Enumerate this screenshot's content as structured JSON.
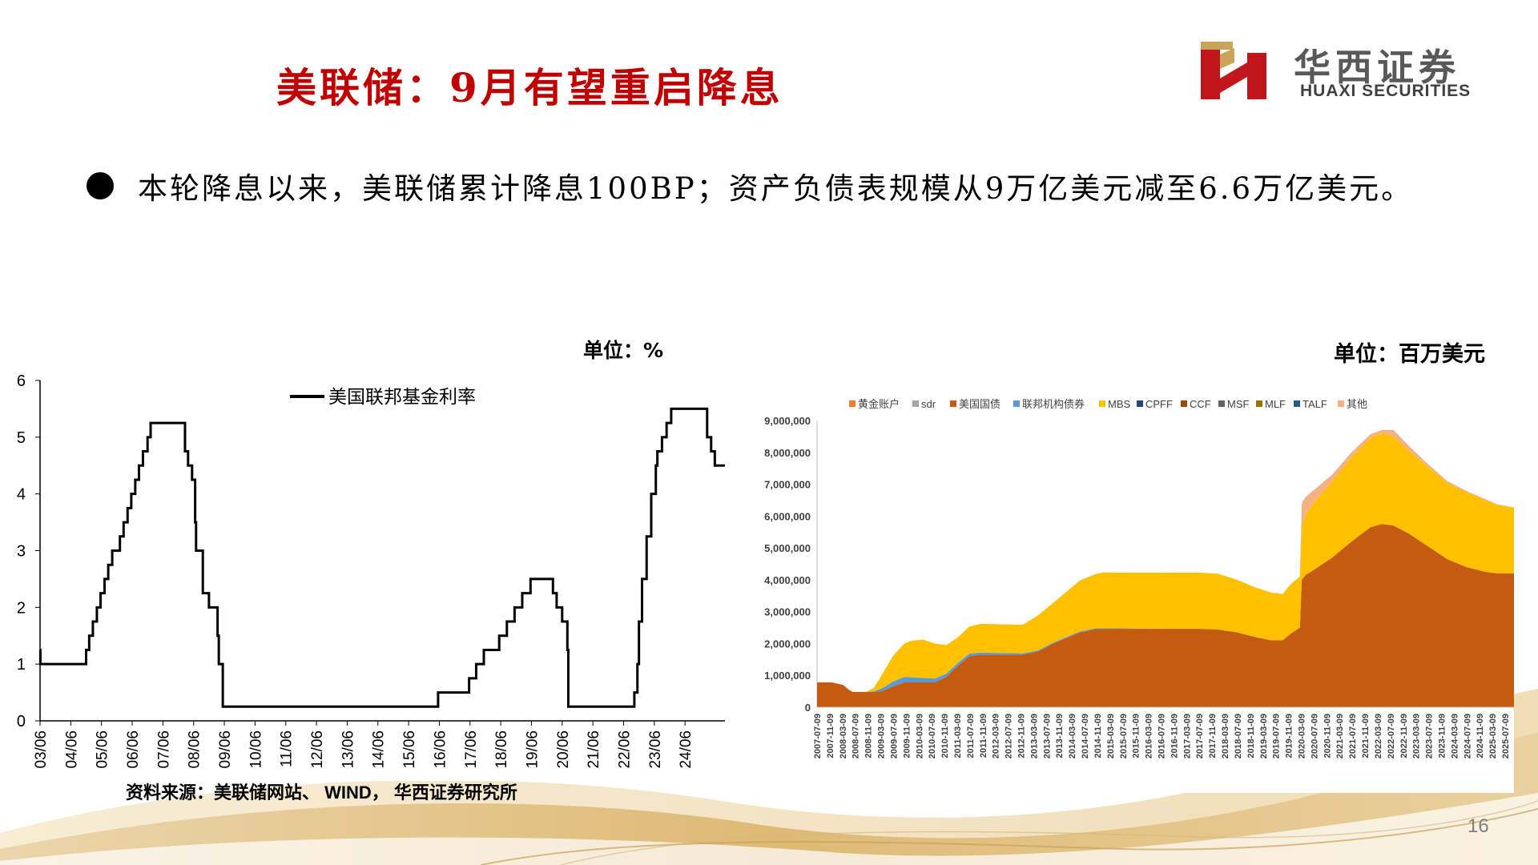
{
  "header": {
    "title": "美联储：9月有望重启降息",
    "logo_cn": "华西证券",
    "logo_en": "HUAXI SECURITIES"
  },
  "bullet": {
    "text": "本轮降息以来，美联储累计降息100BP；资产负债表规模从9万亿美元减至6.6万亿美元。"
  },
  "unit_left": "单位：%",
  "unit_right": "单位：百万美元",
  "source": "资料来源：美联储网站、 WIND， 华西证券研究所",
  "page_number": "16",
  "colors": {
    "title_red": "#c00000",
    "logo_red": "#c0171c",
    "logo_gold": "#c8a55a",
    "fed_rate_line": "#000000",
    "ust": "#c55a11",
    "mbs": "#ffc000",
    "other": "#f4b183",
    "agency": "#5b9bd5",
    "sdr": "#a5a5a5"
  },
  "chart_data": [
    {
      "type": "line",
      "title": "",
      "legend": [
        "美国联邦基金利率"
      ],
      "legend_position": "top-center",
      "xlabel": "",
      "ylabel": "",
      "ylim": [
        0,
        6
      ],
      "yticks": [
        "0",
        "1",
        "2",
        "3",
        "4",
        "5",
        "6"
      ],
      "xticks": [
        "03/06",
        "04/06",
        "05/06",
        "06/06",
        "07/06",
        "08/06",
        "09/06",
        "10/06",
        "11/06",
        "12/06",
        "13/06",
        "14/06",
        "15/06",
        "16/06",
        "17/06",
        "18/06",
        "19/06",
        "20/06",
        "21/06",
        "22/06",
        "23/06",
        "24/06"
      ],
      "xlim": [
        2003.0,
        2025.3
      ],
      "grid": false,
      "series": [
        {
          "name": "美国联邦基金利率",
          "step": true,
          "points": [
            [
              2003.0,
              1.25
            ],
            [
              2003.01,
              1.0
            ],
            [
              2004.5,
              1.0
            ],
            [
              2004.5,
              1.25
            ],
            [
              2004.6,
              1.5
            ],
            [
              2004.72,
              1.75
            ],
            [
              2004.85,
              2.0
            ],
            [
              2004.97,
              2.25
            ],
            [
              2005.1,
              2.5
            ],
            [
              2005.22,
              2.75
            ],
            [
              2005.35,
              3.0
            ],
            [
              2005.6,
              3.25
            ],
            [
              2005.72,
              3.5
            ],
            [
              2005.85,
              3.75
            ],
            [
              2005.97,
              4.0
            ],
            [
              2006.1,
              4.25
            ],
            [
              2006.22,
              4.5
            ],
            [
              2006.35,
              4.75
            ],
            [
              2006.5,
              5.0
            ],
            [
              2006.6,
              5.25
            ],
            [
              2007.7,
              5.25
            ],
            [
              2007.72,
              4.75
            ],
            [
              2007.82,
              4.5
            ],
            [
              2007.95,
              4.25
            ],
            [
              2008.05,
              3.5
            ],
            [
              2008.08,
              3.0
            ],
            [
              2008.3,
              2.25
            ],
            [
              2008.5,
              2.0
            ],
            [
              2008.78,
              1.5
            ],
            [
              2008.82,
              1.0
            ],
            [
              2008.95,
              0.25
            ],
            [
              2015.95,
              0.25
            ],
            [
              2015.96,
              0.5
            ],
            [
              2016.96,
              0.5
            ],
            [
              2016.97,
              0.75
            ],
            [
              2017.2,
              1.0
            ],
            [
              2017.45,
              1.25
            ],
            [
              2017.95,
              1.5
            ],
            [
              2018.2,
              1.75
            ],
            [
              2018.45,
              2.0
            ],
            [
              2018.7,
              2.25
            ],
            [
              2018.97,
              2.5
            ],
            [
              2019.58,
              2.5
            ],
            [
              2019.7,
              2.25
            ],
            [
              2019.82,
              2.0
            ],
            [
              2020.0,
              1.75
            ],
            [
              2020.17,
              1.25
            ],
            [
              2020.2,
              0.25
            ],
            [
              2022.2,
              0.25
            ],
            [
              2022.35,
              0.5
            ],
            [
              2022.45,
              1.0
            ],
            [
              2022.5,
              1.75
            ],
            [
              2022.6,
              2.5
            ],
            [
              2022.75,
              3.25
            ],
            [
              2022.9,
              4.0
            ],
            [
              2023.05,
              4.5
            ],
            [
              2023.1,
              4.75
            ],
            [
              2023.25,
              5.0
            ],
            [
              2023.4,
              5.25
            ],
            [
              2023.55,
              5.5
            ],
            [
              2024.7,
              5.5
            ],
            [
              2024.72,
              5.0
            ],
            [
              2024.85,
              4.75
            ],
            [
              2024.97,
              4.5
            ],
            [
              2025.3,
              4.5
            ]
          ]
        }
      ]
    },
    {
      "type": "area",
      "title": "",
      "stacked": true,
      "legend": [
        "黄金账户",
        "sdr",
        "美国国债",
        "联邦机构债券",
        "MBS",
        "CPFF",
        "CCF",
        "MSF",
        "MLF",
        "TALF",
        "其他"
      ],
      "legend_colors": [
        "#ed7d31",
        "#a5a5a5",
        "#c55a11",
        "#5b9bd5",
        "#ffc000",
        "#264478",
        "#9e480e",
        "#636363",
        "#997300",
        "#255e91",
        "#f4b183"
      ],
      "legend_position": "top",
      "ylim": [
        0,
        9000000
      ],
      "yticks": [
        "0",
        "1,000,000",
        "2,000,000",
        "3,000,000",
        "4,000,000",
        "5,000,000",
        "6,000,000",
        "7,000,000",
        "8,000,000",
        "9,000,000"
      ],
      "xticks": [
        "2007-07-09",
        "2007-11-09",
        "2008-03-09",
        "2008-07-09",
        "2008-11-09",
        "2009-03-09",
        "2009-07-09",
        "2009-11-09",
        "2010-03-09",
        "2010-07-09",
        "2010-11-09",
        "2011-03-09",
        "2011-07-09",
        "2011-11-09",
        "2012-03-09",
        "2012-07-09",
        "2012-11-09",
        "2013-03-09",
        "2013-07-09",
        "2013-11-09",
        "2014-03-09",
        "2014-07-09",
        "2014-11-09",
        "2015-03-09",
        "2015-07-09",
        "2015-11-09",
        "2016-03-09",
        "2016-07-09",
        "2016-11-09",
        "2017-03-09",
        "2017-07-09",
        "2017-11-09",
        "2018-03-09",
        "2018-07-09",
        "2018-11-09",
        "2019-03-09",
        "2019-07-09",
        "2019-11-09",
        "2020-03-09",
        "2020-07-09",
        "2020-11-09",
        "2021-03-09",
        "2021-07-09",
        "2021-11-09",
        "2022-03-09",
        "2022-07-09",
        "2022-11-09",
        "2023-03-09",
        "2023-07-09",
        "2023-11-09",
        "2024-03-09",
        "2024-07-09",
        "2024-11-09",
        "2025-03-09",
        "2025-07-09"
      ],
      "xlim": [
        2007.52,
        2025.75
      ],
      "grid": false,
      "x": [
        2007.52,
        2007.9,
        2008.2,
        2008.35,
        2008.45,
        2008.6,
        2008.8,
        2009.0,
        2009.2,
        2009.5,
        2009.8,
        2010.0,
        2010.3,
        2010.6,
        2010.9,
        2011.2,
        2011.5,
        2011.8,
        2012.0,
        2012.5,
        2012.9,
        2013.3,
        2013.7,
        2014.0,
        2014.4,
        2014.8,
        2015.0,
        2016.0,
        2017.0,
        2017.5,
        2018.0,
        2018.5,
        2019.0,
        2019.4,
        2019.7,
        2019.9,
        2020.15,
        2020.2,
        2020.3,
        2020.5,
        2021.0,
        2021.5,
        2022.0,
        2022.3,
        2022.6,
        2023.0,
        2023.5,
        2024.0,
        2024.5,
        2025.0,
        2025.3,
        2025.75
      ],
      "series": [
        {
          "name": "美国国债",
          "values": [
            780000,
            780000,
            700000,
            550000,
            480000,
            480000,
            480000,
            480000,
            500000,
            650000,
            780000,
            780000,
            780000,
            780000,
            950000,
            1300000,
            1600000,
            1650000,
            1650000,
            1650000,
            1650000,
            1750000,
            2000000,
            2150000,
            2350000,
            2450000,
            2460000,
            2460000,
            2460000,
            2460000,
            2440000,
            2350000,
            2200000,
            2100000,
            2100000,
            2300000,
            2500000,
            4000000,
            4150000,
            4300000,
            4700000,
            5200000,
            5650000,
            5750000,
            5700000,
            5450000,
            5050000,
            4650000,
            4400000,
            4250000,
            4200000,
            4200000
          ]
        },
        {
          "name": "联邦机构债券",
          "values": [
            0,
            0,
            0,
            0,
            0,
            0,
            0,
            20000,
            80000,
            150000,
            170000,
            160000,
            140000,
            120000,
            100000,
            90000,
            80000,
            70000,
            60000,
            50000,
            40000,
            35000,
            30000,
            30000,
            30000,
            25000,
            20000,
            10000,
            5000,
            3000,
            2000,
            2000,
            2000,
            2000,
            2000,
            2000,
            2000,
            2000,
            2000,
            2000,
            2000,
            2000,
            2000,
            2000,
            2000,
            2000,
            2000,
            2000,
            2000,
            2000,
            2000,
            2000
          ]
        },
        {
          "name": "MBS",
          "values": [
            0,
            0,
            0,
            0,
            0,
            0,
            0,
            100000,
            400000,
            800000,
            1050000,
            1150000,
            1200000,
            1100000,
            900000,
            800000,
            850000,
            900000,
            900000,
            900000,
            900000,
            1100000,
            1250000,
            1400000,
            1600000,
            1700000,
            1750000,
            1750000,
            1760000,
            1760000,
            1750000,
            1650000,
            1550000,
            1500000,
            1450000,
            1550000,
            1600000,
            1700000,
            1900000,
            2100000,
            2400000,
            2650000,
            2800000,
            2850000,
            2800000,
            2600000,
            2500000,
            2400000,
            2350000,
            2250000,
            2150000,
            2050000
          ]
        },
        {
          "name": "其他",
          "values": [
            0,
            0,
            0,
            0,
            0,
            0,
            0,
            0,
            0,
            0,
            0,
            0,
            0,
            0,
            0,
            0,
            0,
            0,
            0,
            0,
            0,
            0,
            0,
            0,
            0,
            0,
            0,
            0,
            0,
            0,
            0,
            0,
            0,
            0,
            0,
            0,
            0,
            700000,
            550000,
            400000,
            200000,
            150000,
            120000,
            100000,
            200000,
            150000,
            80000,
            50000,
            40000,
            30000,
            20000,
            20000
          ]
        }
      ]
    }
  ]
}
